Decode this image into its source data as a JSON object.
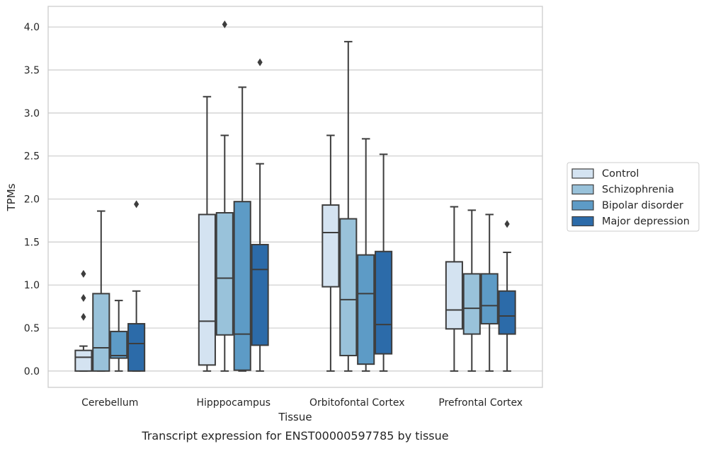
{
  "chart_data": {
    "type": "boxplot",
    "title": "Transcript expression for ENST00000597785 by tissue",
    "xlabel": "Tissue",
    "ylabel": "TPMs",
    "ylim": [
      -0.19,
      4.24
    ],
    "yticks": [
      "0.0",
      "0.5",
      "1.0",
      "1.5",
      "2.0",
      "2.5",
      "3.0",
      "3.5",
      "4.0"
    ],
    "ytick_values": [
      0,
      0.5,
      1.0,
      1.5,
      2.0,
      2.5,
      3.0,
      3.5,
      4.0
    ],
    "grid": "horizontal",
    "legend_position": "right",
    "categories": [
      "Cerebellum",
      "Hipppocampus",
      "Orbitofontal Cortex",
      "Prefrontal Cortex"
    ],
    "series": [
      {
        "name": "Control",
        "color": "#d4e3f1",
        "boxes": [
          {
            "whislo": 0.0,
            "q1": 0.0,
            "med": 0.16,
            "q3": 0.24,
            "whishi": 0.29,
            "fliers": [
              0.63,
              0.85,
              1.13
            ]
          },
          {
            "whislo": 0.0,
            "q1": 0.07,
            "med": 0.58,
            "q3": 1.82,
            "whishi": 3.19,
            "fliers": []
          },
          {
            "whislo": 0.0,
            "q1": 0.98,
            "med": 1.61,
            "q3": 1.93,
            "whishi": 2.74,
            "fliers": []
          },
          {
            "whislo": 0.0,
            "q1": 0.49,
            "med": 0.71,
            "q3": 1.27,
            "whishi": 1.91,
            "fliers": []
          }
        ]
      },
      {
        "name": "Schizophrenia",
        "color": "#99c2da",
        "boxes": [
          {
            "whislo": 0.0,
            "q1": 0.0,
            "med": 0.27,
            "q3": 0.9,
            "whishi": 1.86,
            "fliers": []
          },
          {
            "whislo": 0.0,
            "q1": 0.42,
            "med": 1.08,
            "q3": 1.84,
            "whishi": 2.74,
            "fliers": [
              4.03
            ]
          },
          {
            "whislo": 0.0,
            "q1": 0.18,
            "med": 0.83,
            "q3": 1.77,
            "whishi": 3.83,
            "fliers": []
          },
          {
            "whislo": 0.0,
            "q1": 0.43,
            "med": 0.73,
            "q3": 1.13,
            "whishi": 1.87,
            "fliers": []
          }
        ]
      },
      {
        "name": "Bipolar disorder",
        "color": "#5d9bc6",
        "boxes": [
          {
            "whislo": 0.0,
            "q1": 0.15,
            "med": 0.18,
            "q3": 0.46,
            "whishi": 0.82,
            "fliers": []
          },
          {
            "whislo": 0.0,
            "q1": 0.01,
            "med": 0.43,
            "q3": 1.97,
            "whishi": 3.3,
            "fliers": []
          },
          {
            "whislo": 0.0,
            "q1": 0.08,
            "med": 0.9,
            "q3": 1.35,
            "whishi": 2.7,
            "fliers": []
          },
          {
            "whislo": 0.0,
            "q1": 0.55,
            "med": 0.76,
            "q3": 1.13,
            "whishi": 1.82,
            "fliers": []
          }
        ]
      },
      {
        "name": "Major depression",
        "color": "#2c6ba9",
        "boxes": [
          {
            "whislo": 0.0,
            "q1": 0.0,
            "med": 0.32,
            "q3": 0.55,
            "whishi": 0.93,
            "fliers": [
              1.94
            ]
          },
          {
            "whislo": 0.0,
            "q1": 0.3,
            "med": 1.18,
            "q3": 1.47,
            "whishi": 2.41,
            "fliers": [
              3.59
            ]
          },
          {
            "whislo": 0.0,
            "q1": 0.2,
            "med": 0.54,
            "q3": 1.39,
            "whishi": 2.52,
            "fliers": []
          },
          {
            "whislo": 0.0,
            "q1": 0.43,
            "med": 0.64,
            "q3": 0.93,
            "whishi": 1.38,
            "fliers": [
              1.71
            ]
          }
        ]
      }
    ]
  }
}
